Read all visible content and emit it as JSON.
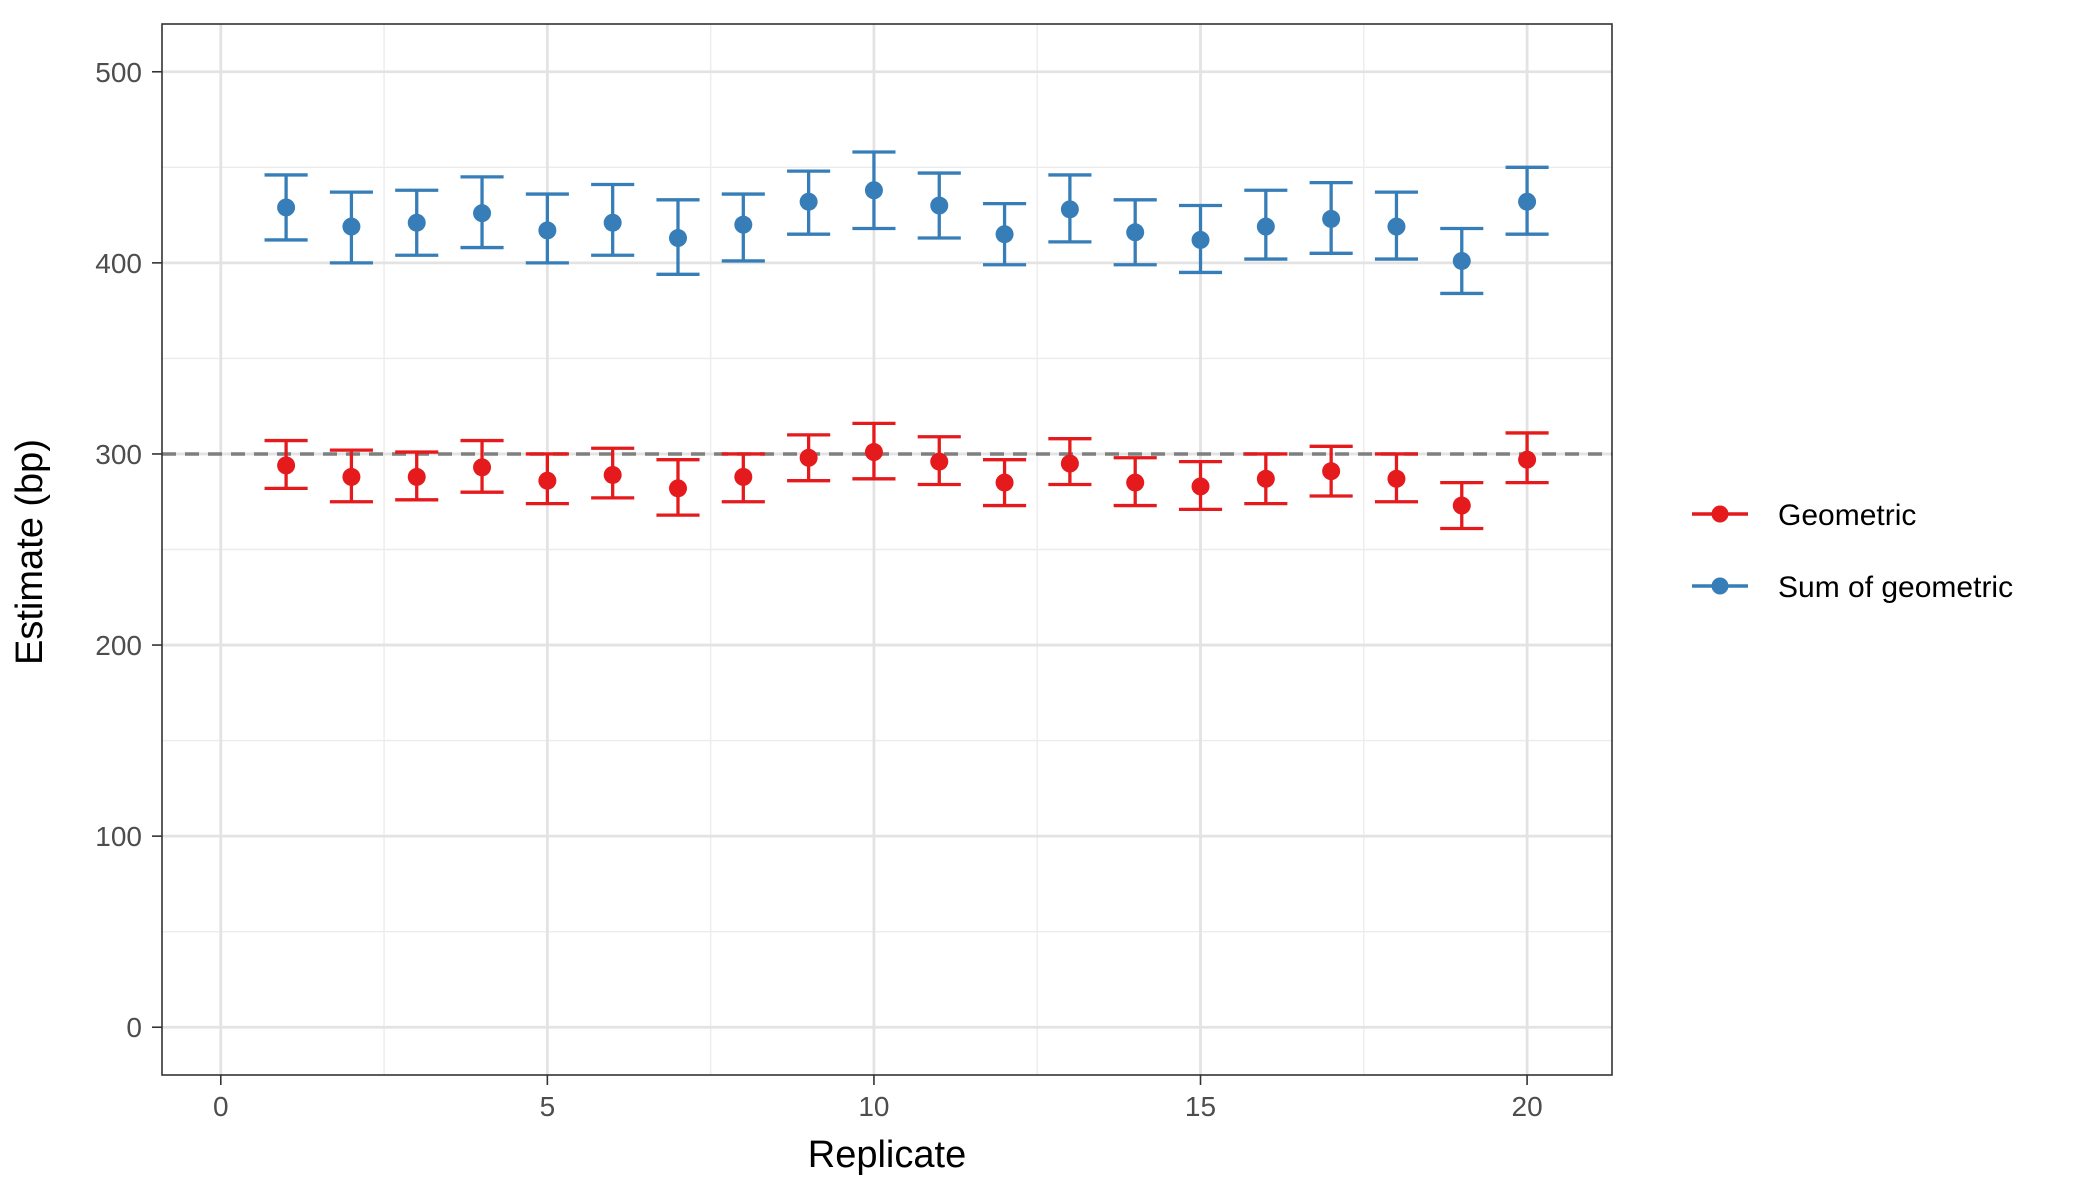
{
  "chart_data": {
    "type": "scatter",
    "xlabel": "Replicate",
    "ylabel": "Estimate (bp)",
    "xlim": [
      -0.9,
      21.3
    ],
    "ylim": [
      -25,
      525
    ],
    "xticks": [
      0,
      5,
      10,
      15,
      20
    ],
    "yticks": [
      0,
      100,
      200,
      300,
      400,
      500
    ],
    "grid": true,
    "legend_position": "right",
    "reference_line": {
      "y": 300,
      "style": "dashed",
      "color": "#7f7f7f"
    },
    "series": [
      {
        "name": "Geometric",
        "color": "#e41a1c",
        "x": [
          1,
          2,
          3,
          4,
          5,
          6,
          7,
          8,
          9,
          10,
          11,
          12,
          13,
          14,
          15,
          16,
          17,
          18,
          19,
          20
        ],
        "y": [
          294,
          288,
          288,
          293,
          286,
          289,
          282,
          288,
          298,
          301,
          296,
          285,
          295,
          285,
          283,
          287,
          291,
          287,
          273,
          297
        ],
        "lower": [
          282,
          275,
          276,
          280,
          274,
          277,
          268,
          275,
          286,
          287,
          284,
          273,
          284,
          273,
          271,
          274,
          278,
          275,
          261,
          285
        ],
        "upper": [
          307,
          302,
          301,
          307,
          300,
          303,
          297,
          300,
          310,
          316,
          309,
          297,
          308,
          298,
          296,
          300,
          304,
          300,
          285,
          311
        ]
      },
      {
        "name": "Sum of geometric",
        "color": "#377eb8",
        "x": [
          1,
          2,
          3,
          4,
          5,
          6,
          7,
          8,
          9,
          10,
          11,
          12,
          13,
          14,
          15,
          16,
          17,
          18,
          19,
          20
        ],
        "y": [
          429,
          419,
          421,
          426,
          417,
          421,
          413,
          420,
          432,
          438,
          430,
          415,
          428,
          416,
          412,
          419,
          423,
          419,
          401,
          432
        ],
        "lower": [
          412,
          400,
          404,
          408,
          400,
          404,
          394,
          401,
          415,
          418,
          413,
          399,
          411,
          399,
          395,
          402,
          405,
          402,
          384,
          415
        ],
        "upper": [
          446,
          437,
          438,
          445,
          436,
          441,
          433,
          436,
          448,
          458,
          447,
          431,
          446,
          433,
          430,
          438,
          442,
          437,
          418,
          450
        ]
      }
    ]
  }
}
